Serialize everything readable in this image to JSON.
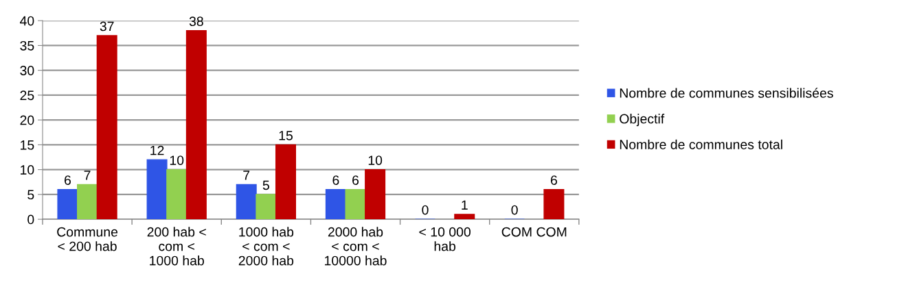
{
  "chart_data": {
    "type": "bar",
    "categories": [
      "Commune\n< 200 hab",
      "200 hab <\ncom <\n1000 hab",
      "1000 hab\n< com <\n2000 hab",
      "2000 hab\n< com <\n10000 hab",
      "< 10 000\nhab",
      "COM COM"
    ],
    "series": [
      {
        "name": "Nombre de communes sensibilisées",
        "color": "#2f55e6",
        "values": [
          6,
          12,
          7,
          6,
          0,
          0
        ]
      },
      {
        "name": "Objectif",
        "color": "#92d050",
        "values": [
          7,
          10,
          5,
          6,
          null,
          null
        ]
      },
      {
        "name": "Nombre de communes total",
        "color": "#c00000",
        "values": [
          37,
          38,
          15,
          10,
          1,
          6
        ]
      }
    ],
    "ylim": [
      0,
      40
    ],
    "yticks": [
      0,
      5,
      10,
      15,
      20,
      25,
      30,
      35,
      40
    ],
    "grid": "y",
    "legend": "right",
    "data_labels": true
  }
}
